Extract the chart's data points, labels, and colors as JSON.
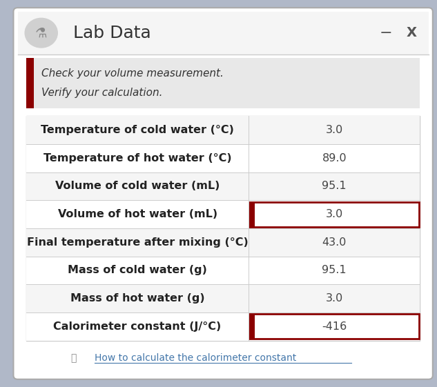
{
  "title": "Lab Data",
  "bg_color": "#ffffff",
  "header_bg": "#f0f0f0",
  "table_border": "#cccccc",
  "dark_red": "#8b0000",
  "warning_bg": "#e8e8e8",
  "warning_line1": "Check your volume measurement.",
  "warning_line2": "Verify your calculation.",
  "link_text": "How to calculate the calorimeter constant",
  "rows": [
    {
      "label": "Temperature of cold water (°C)",
      "value": "3.0",
      "highlight": false
    },
    {
      "label": "Temperature of hot water (°C)",
      "value": "89.0",
      "highlight": false
    },
    {
      "label": "Volume of cold water (mL)",
      "value": "95.1",
      "highlight": false
    },
    {
      "label": "Volume of hot water (mL)",
      "value": "3.0",
      "highlight": true
    },
    {
      "label": "Final temperature after mixing (°C)",
      "value": "43.0",
      "highlight": false
    },
    {
      "label": "Mass of cold water (g)",
      "value": "95.1",
      "highlight": false
    },
    {
      "label": "Mass of hot water (g)",
      "value": "3.0",
      "highlight": false
    },
    {
      "label": "Calorimeter constant (J/°C)",
      "value": "-416",
      "highlight": true
    }
  ],
  "title_fontsize": 18,
  "row_fontsize": 11.5,
  "warning_fontsize": 11,
  "link_fontsize": 10,
  "figsize": [
    6.33,
    5.61
  ],
  "dpi": 100
}
